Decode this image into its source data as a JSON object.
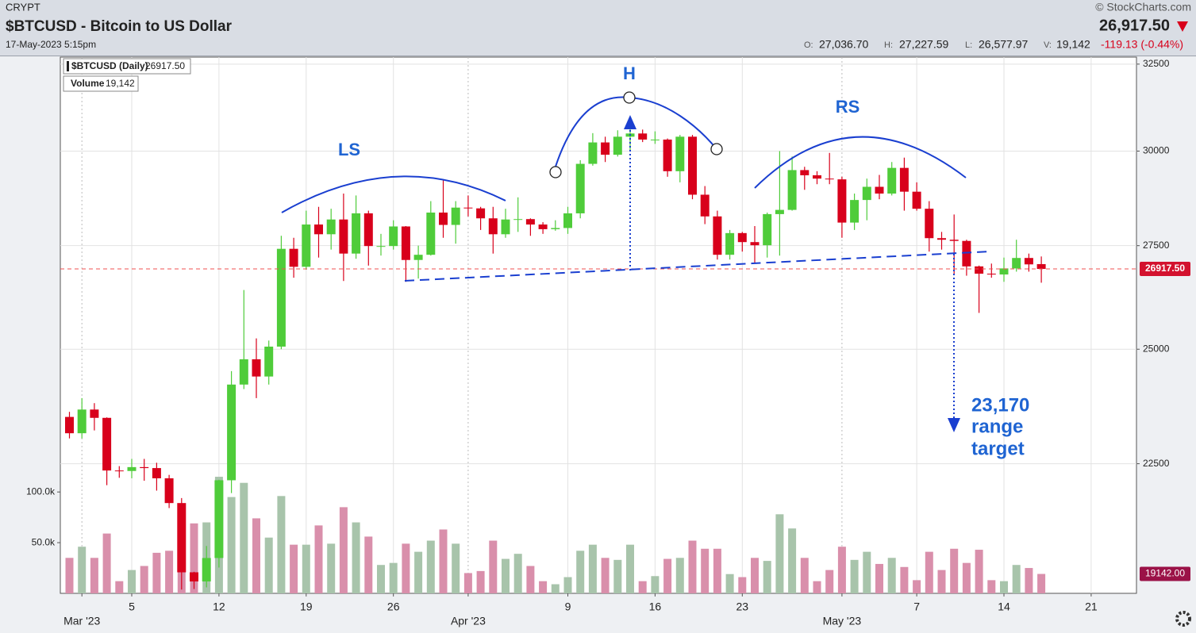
{
  "header": {
    "exchange": "CRYPT",
    "title": "$BTCUSD - Bitcoin to US Dollar",
    "timestamp": "17-May-2023 5:15pm",
    "copyright": "© StockCharts.com",
    "last": "26,917.50",
    "ohlcv": [
      {
        "label": "O:",
        "value": "27,036.70"
      },
      {
        "label": "H:",
        "value": "27,227.59"
      },
      {
        "label": "L:",
        "value": "26,577.97"
      },
      {
        "label": "V:",
        "value": "19,142"
      }
    ],
    "change": "-119.13 (-0.44%)"
  },
  "chart_data": {
    "type": "candlestick",
    "x": [
      "2023-02-28",
      "2023-03-01",
      "2023-03-02",
      "2023-03-03",
      "2023-03-04",
      "2023-03-05",
      "2023-03-06",
      "2023-03-07",
      "2023-03-08",
      "2023-03-09",
      "2023-03-10",
      "2023-03-11",
      "2023-03-12",
      "2023-03-13",
      "2023-03-14",
      "2023-03-15",
      "2023-03-16",
      "2023-03-17",
      "2023-03-18",
      "2023-03-19",
      "2023-03-20",
      "2023-03-21",
      "2023-03-22",
      "2023-03-23",
      "2023-03-24",
      "2023-03-25",
      "2023-03-26",
      "2023-03-27",
      "2023-03-28",
      "2023-03-29",
      "2023-03-30",
      "2023-03-31",
      "2023-04-01",
      "2023-04-02",
      "2023-04-03",
      "2023-04-04",
      "2023-04-05",
      "2023-04-06",
      "2023-04-07",
      "2023-04-08",
      "2023-04-09",
      "2023-04-10",
      "2023-04-11",
      "2023-04-12",
      "2023-04-13",
      "2023-04-14",
      "2023-04-15",
      "2023-04-16",
      "2023-04-17",
      "2023-04-18",
      "2023-04-19",
      "2023-04-20",
      "2023-04-21",
      "2023-04-22",
      "2023-04-23",
      "2023-04-24",
      "2023-04-25",
      "2023-04-26",
      "2023-04-27",
      "2023-04-28",
      "2023-04-29",
      "2023-04-30",
      "2023-05-01",
      "2023-05-02",
      "2023-05-03",
      "2023-05-04",
      "2023-05-05",
      "2023-05-06",
      "2023-05-07",
      "2023-05-08",
      "2023-05-09",
      "2023-05-10",
      "2023-05-11",
      "2023-05-12",
      "2023-05-13",
      "2023-05-14",
      "2023-05-15",
      "2023-05-16",
      "2023-05-17"
    ],
    "open": [
      23490,
      23140,
      23650,
      23470,
      22360,
      22350,
      22430,
      22410,
      22200,
      21700,
      20360,
      20190,
      20630,
      22160,
      24200,
      24770,
      24380,
      25060,
      27420,
      26970,
      28040,
      27790,
      28170,
      27300,
      28330,
      27490,
      27490,
      27990,
      27140,
      27270,
      28350,
      28030,
      28480,
      28460,
      28200,
      27790,
      28170,
      28180,
      28040,
      27920,
      27950,
      28330,
      29650,
      30240,
      29900,
      30400,
      30490,
      30320,
      30320,
      29450,
      30400,
      28820,
      28250,
      27270,
      27820,
      27590,
      27510,
      28310,
      28420,
      29480,
      29340,
      29250,
      29230,
      28090,
      28680,
      29030,
      28850,
      29540,
      28900,
      28450,
      27690,
      27650,
      27620,
      26980,
      26800,
      26780,
      26930,
      27190,
      27036.7
    ],
    "high": [
      23600,
      23900,
      23790,
      23480,
      22450,
      22600,
      22600,
      22520,
      22270,
      21800,
      20370,
      20860,
      22170,
      24500,
      26400,
      25250,
      25200,
      27750,
      27700,
      28400,
      28500,
      28450,
      28850,
      28800,
      28400,
      27800,
      28150,
      28000,
      27500,
      28650,
      29200,
      28650,
      28800,
      28500,
      28500,
      28450,
      28750,
      28200,
      28100,
      28150,
      28500,
      29750,
      30500,
      30400,
      30580,
      30950,
      30600,
      30550,
      30350,
      30450,
      30450,
      29050,
      28400,
      27900,
      27850,
      28000,
      28350,
      30000,
      29850,
      29570,
      29450,
      29950,
      29300,
      28850,
      29250,
      29350,
      29700,
      29820,
      29150,
      28650,
      27850,
      28300,
      27650,
      27000,
      27050,
      27200,
      27650,
      27300,
      27227.59
    ],
    "low": [
      23030,
      23030,
      23200,
      22060,
      22210,
      22200,
      22150,
      21950,
      21600,
      20040,
      20050,
      20080,
      20450,
      21900,
      24100,
      23900,
      24200,
      25000,
      26700,
      26900,
      27200,
      27400,
      26620,
      27170,
      27000,
      27250,
      27400,
      26600,
      26680,
      27250,
      27700,
      27550,
      28250,
      27900,
      27300,
      27700,
      27850,
      27750,
      27800,
      27880,
      27800,
      28200,
      29600,
      29700,
      29850,
      30000,
      30250,
      30200,
      29300,
      29150,
      28700,
      28050,
      27150,
      27150,
      27350,
      27050,
      27200,
      27250,
      28400,
      28950,
      29100,
      29100,
      27700,
      27900,
      28150,
      28700,
      28800,
      28400,
      28400,
      27350,
      27400,
      26800,
      26750,
      25850,
      26700,
      26600,
      26850,
      26850,
      26577.97
    ],
    "close": [
      23140,
      23650,
      23470,
      22360,
      22350,
      22430,
      22410,
      22200,
      21700,
      20360,
      20190,
      20630,
      22160,
      24200,
      24770,
      24380,
      25060,
      27420,
      26970,
      28040,
      27790,
      28170,
      27300,
      28330,
      27490,
      27490,
      27990,
      27140,
      27270,
      28350,
      28030,
      28480,
      28460,
      28200,
      27790,
      28170,
      28180,
      28040,
      27920,
      27950,
      28330,
      29650,
      30240,
      29900,
      30400,
      30490,
      30320,
      30320,
      29450,
      30400,
      28820,
      28250,
      27270,
      27820,
      27590,
      27510,
      28310,
      28420,
      29480,
      29340,
      29250,
      29230,
      28090,
      28680,
      29030,
      28850,
      29540,
      28900,
      28450,
      27690,
      27650,
      27620,
      26980,
      26800,
      26780,
      26930,
      27190,
      27030,
      26917.5
    ],
    "volume": [
      35000,
      46000,
      35000,
      59000,
      12000,
      23000,
      27000,
      40000,
      42000,
      75000,
      69000,
      70000,
      115000,
      95000,
      109000,
      74000,
      55000,
      96000,
      48000,
      48000,
      67000,
      49000,
      85000,
      70000,
      56000,
      28000,
      30000,
      49000,
      41000,
      52000,
      63000,
      49000,
      20000,
      22000,
      52000,
      34000,
      39000,
      27000,
      12000,
      9000,
      16000,
      42000,
      48000,
      35000,
      33000,
      48000,
      12000,
      17000,
      34000,
      35000,
      52000,
      44000,
      44000,
      19000,
      16000,
      35000,
      32000,
      78000,
      64000,
      35000,
      12000,
      23000,
      46000,
      33000,
      41000,
      29000,
      35000,
      26000,
      13000,
      41000,
      23000,
      44000,
      30000,
      43000,
      13000,
      12000,
      28000,
      25000,
      19142
    ],
    "colors": {
      "up": "#4fcc3a",
      "down": "#d8001b",
      "volume_up": "#a8c4ab",
      "volume_down": "#d98fab"
    },
    "log_scale": true,
    "grid": true,
    "ylim": [
      19970,
      32710
    ],
    "yticks": [
      22500,
      25000,
      27500,
      30000,
      32500
    ],
    "volume_ylim": [
      0,
      529000
    ],
    "volume_yticks": [
      {
        "value": 50000,
        "label": "50.0k"
      },
      {
        "value": 100000,
        "label": "100.0k"
      }
    ],
    "xticks": [
      {
        "value": "2023-03-01",
        "label": "Mar '23"
      },
      {
        "value": "2023-03-05",
        "label": "5"
      },
      {
        "value": "2023-03-12",
        "label": "12"
      },
      {
        "value": "2023-03-19",
        "label": "19"
      },
      {
        "value": "2023-03-26",
        "label": "26"
      },
      {
        "value": "2023-04-01",
        "label": "Apr '23"
      },
      {
        "value": "2023-04-09",
        "label": "9"
      },
      {
        "value": "2023-04-16",
        "label": "16"
      },
      {
        "value": "2023-04-23",
        "label": "23"
      },
      {
        "value": "2023-05-01",
        "label": "May '23"
      },
      {
        "value": "2023-05-07",
        "label": "7"
      },
      {
        "value": "2023-05-14",
        "label": "14"
      },
      {
        "value": "2023-05-21",
        "label": "21"
      }
    ],
    "legend": [
      {
        "name": "$BTCUSD (Daily)",
        "value": "26917.50"
      },
      {
        "name": "Volume",
        "value": "19,142"
      }
    ],
    "last_labels": {
      "price": "26917.50",
      "volume": "19142.00"
    },
    "annotations": {
      "left_shoulder": "LS",
      "head": "H",
      "right_shoulder": "RS",
      "target": [
        "23,170",
        "range",
        "target"
      ]
    }
  }
}
